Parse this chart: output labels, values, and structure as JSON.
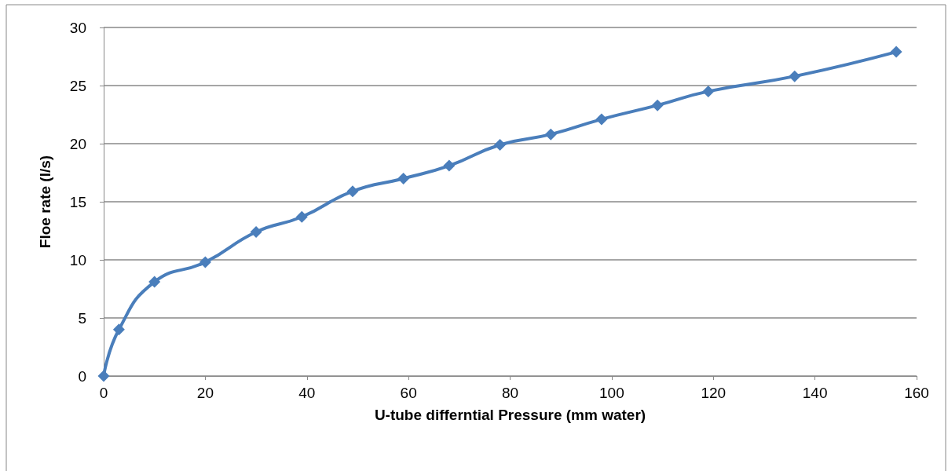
{
  "chart_data": {
    "type": "line",
    "xlabel": "U-tube differntial Pressure (mm water)",
    "ylabel": "Floe rate (l/s)",
    "x": [
      0,
      3,
      10,
      20,
      30,
      39,
      49,
      59,
      68,
      78,
      88,
      98,
      109,
      119,
      136,
      156
    ],
    "series": [
      {
        "color": "#4a7ebb",
        "values": [
          0,
          4,
          8.1,
          9.8,
          12.4,
          13.7,
          15.9,
          17,
          18.1,
          19.9,
          20.8,
          22.1,
          23.3,
          24.5,
          25.8,
          27.9
        ]
      }
    ],
    "xlim": [
      0,
      160
    ],
    "xticks": [
      0,
      20,
      40,
      60,
      80,
      100,
      120,
      140,
      160
    ],
    "ylim": [
      0,
      30
    ],
    "yticks": [
      0,
      5,
      10,
      15,
      20,
      25,
      30
    ],
    "grid": "y",
    "marker": "diamond",
    "line_style": "solid"
  }
}
